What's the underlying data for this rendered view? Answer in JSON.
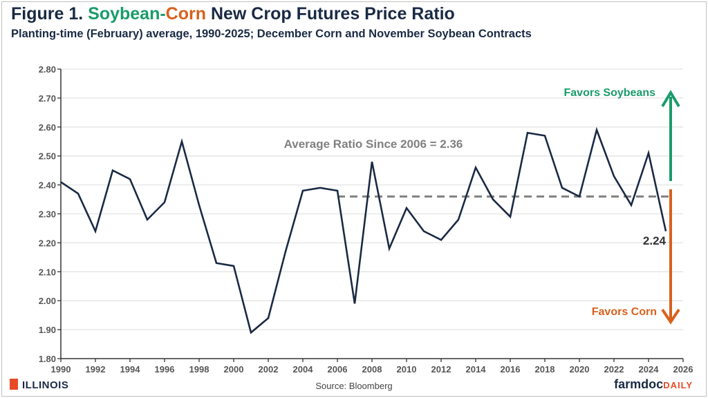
{
  "header": {
    "title_prefix": "Figure 1. ",
    "title_soy": "Soybean",
    "title_dash": "-",
    "title_corn": "Corn",
    "title_suffix": " New Crop Futures Price Ratio",
    "subtitle": "Planting-time (February) average, 1990-2025; December Corn and November Soybean Contracts"
  },
  "footer": {
    "source": "Source: Bloomberg",
    "logo_left": "ILLINOIS",
    "logo_right_a": "farmdoc",
    "logo_right_b": "DAILY"
  },
  "colors": {
    "line": "#1a2a44",
    "soy": "#1a9b6b",
    "corn": "#d9601c",
    "average": "#808080",
    "grid": "#e3e3e3"
  },
  "chart_data": {
    "type": "line",
    "x": [
      1990,
      1991,
      1992,
      1993,
      1994,
      1995,
      1996,
      1997,
      1998,
      1999,
      2000,
      2001,
      2002,
      2003,
      2004,
      2005,
      2006,
      2007,
      2008,
      2009,
      2010,
      2011,
      2012,
      2013,
      2014,
      2015,
      2016,
      2017,
      2018,
      2019,
      2020,
      2021,
      2022,
      2023,
      2024,
      2025
    ],
    "series": [
      {
        "values": [
          2.41,
          2.37,
          2.24,
          2.45,
          2.42,
          2.28,
          2.34,
          2.55,
          2.33,
          2.13,
          2.12,
          1.89,
          1.94,
          2.17,
          2.38,
          2.39,
          2.38,
          1.99,
          2.48,
          2.18,
          2.32,
          2.24,
          2.21,
          2.28,
          2.46,
          2.35,
          2.29,
          2.58,
          2.57,
          2.39,
          2.36,
          2.59,
          2.43,
          2.33,
          2.51,
          2.24
        ]
      }
    ],
    "average": {
      "value": 2.36,
      "from": 2006,
      "to": 2025,
      "label": "Average Ratio Since 2006 = 2.36"
    },
    "last_label": "2.24",
    "annotations": {
      "up": "Favors Soybeans",
      "down": "Favors Corn"
    },
    "xlim": [
      1990,
      2026
    ],
    "ylim": [
      1.8,
      2.8
    ],
    "xticks": [
      "1990",
      "1992",
      "1994",
      "1996",
      "1998",
      "2000",
      "2002",
      "2004",
      "2006",
      "2008",
      "2010",
      "2012",
      "2014",
      "2016",
      "2018",
      "2020",
      "2022",
      "2024",
      "2026"
    ],
    "yticks": [
      "1.80",
      "1.90",
      "2.00",
      "2.10",
      "2.20",
      "2.30",
      "2.40",
      "2.50",
      "2.60",
      "2.70",
      "2.80"
    ],
    "grid": true
  }
}
